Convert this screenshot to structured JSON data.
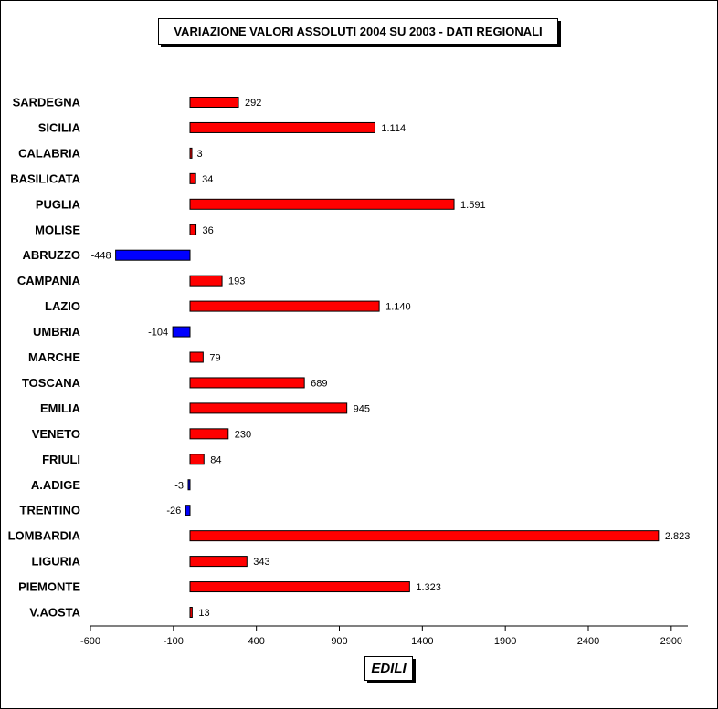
{
  "chart_data": {
    "type": "bar",
    "orientation": "horizontal",
    "title": "VARIAZIONE VALORI ASSOLUTI 2004 SU 2003 - DATI REGIONALI",
    "xlabel": "EDILI",
    "xlim": [
      -600,
      3000
    ],
    "xticks": [
      -600,
      -100,
      400,
      900,
      1400,
      1900,
      2400,
      2900
    ],
    "categories": [
      "SARDEGNA",
      "SICILIA",
      "CALABRIA",
      "BASILICATA",
      "PUGLIA",
      "MOLISE",
      "ABRUZZO",
      "CAMPANIA",
      "LAZIO",
      "UMBRIA",
      "MARCHE",
      "TOSCANA",
      "EMILIA",
      "VENETO",
      "FRIULI",
      "A.ADIGE",
      "TRENTINO",
      "LOMBARDIA",
      "LIGURIA",
      "PIEMONTE",
      "V.AOSTA"
    ],
    "values": [
      292,
      1114,
      3,
      34,
      1591,
      36,
      -448,
      193,
      1140,
      -104,
      79,
      689,
      945,
      230,
      84,
      -3,
      -26,
      2823,
      343,
      1323,
      13
    ],
    "value_labels": [
      "292",
      "1.114",
      "3",
      "34",
      "1.591",
      "36",
      "-448",
      "193",
      "1.140",
      "-104",
      "79",
      "689",
      "945",
      "230",
      "84",
      "-3",
      "-26",
      "2.823",
      "343",
      "1.323",
      "13"
    ],
    "colors": {
      "positive": "#ff0000",
      "negative": "#0000ff",
      "outline": "#000000"
    },
    "grid": false,
    "legend": "none"
  }
}
